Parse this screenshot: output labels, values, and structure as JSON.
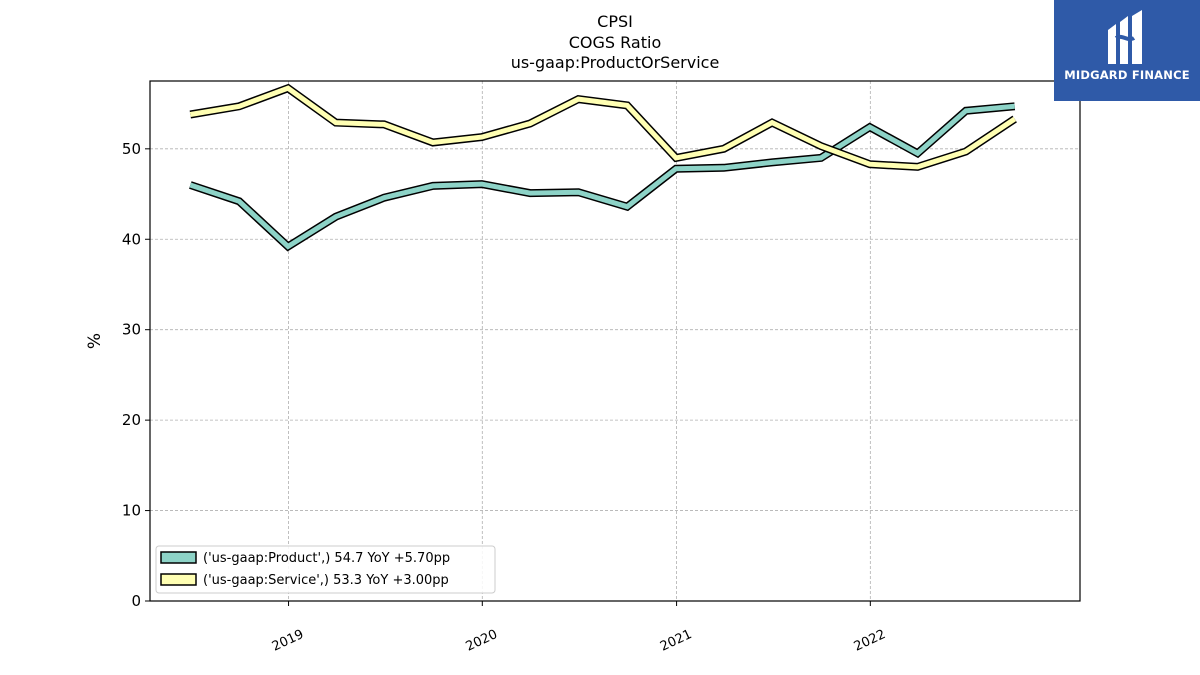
{
  "chart_data": {
    "type": "line",
    "title": "CPSI",
    "subtitle_lines": [
      "COGS Ratio",
      "us-gaap:ProductOrService"
    ],
    "ylabel": "%",
    "xlabel": "",
    "ylim": [
      0,
      57.5
    ],
    "xlim": [
      "2018-04-15",
      "2023-01-31"
    ],
    "yticks": [
      0,
      10,
      20,
      30,
      40,
      50
    ],
    "xticks": [
      {
        "label": "2019",
        "date": "2019-01-01"
      },
      {
        "label": "2020",
        "date": "2020-01-01"
      },
      {
        "label": "2021",
        "date": "2021-01-01"
      },
      {
        "label": "2022",
        "date": "2022-01-01"
      }
    ],
    "grid": true,
    "legend_position": "lower-left",
    "x": [
      "2018-06-30",
      "2018-09-30",
      "2018-12-31",
      "2019-03-31",
      "2019-06-30",
      "2019-09-30",
      "2019-12-31",
      "2020-03-31",
      "2020-06-30",
      "2020-09-30",
      "2020-12-31",
      "2021-03-31",
      "2021-06-30",
      "2021-09-30",
      "2021-12-31",
      "2022-03-31",
      "2022-06-30",
      "2022-09-30"
    ],
    "series": [
      {
        "name": "('us-gaap:Product',) 54.7 YoY +5.70pp",
        "color": "#8dd3c7",
        "values": [
          46.0,
          44.2,
          39.2,
          42.5,
          44.6,
          45.9,
          46.1,
          45.1,
          45.2,
          43.6,
          47.8,
          47.9,
          48.5,
          49.0,
          52.4,
          49.5,
          54.2,
          54.7
        ]
      },
      {
        "name": "('us-gaap:Service',) 53.3 YoY +3.00pp",
        "color": "#ffffb3",
        "values": [
          53.8,
          54.7,
          56.7,
          52.9,
          52.7,
          50.7,
          51.3,
          52.8,
          55.5,
          54.8,
          49.0,
          50.0,
          52.9,
          50.3,
          48.3,
          48.0,
          49.7,
          53.3
        ]
      }
    ]
  },
  "logo": {
    "text": "MIDGARD FINANCE",
    "background": "#2f5aa8"
  }
}
